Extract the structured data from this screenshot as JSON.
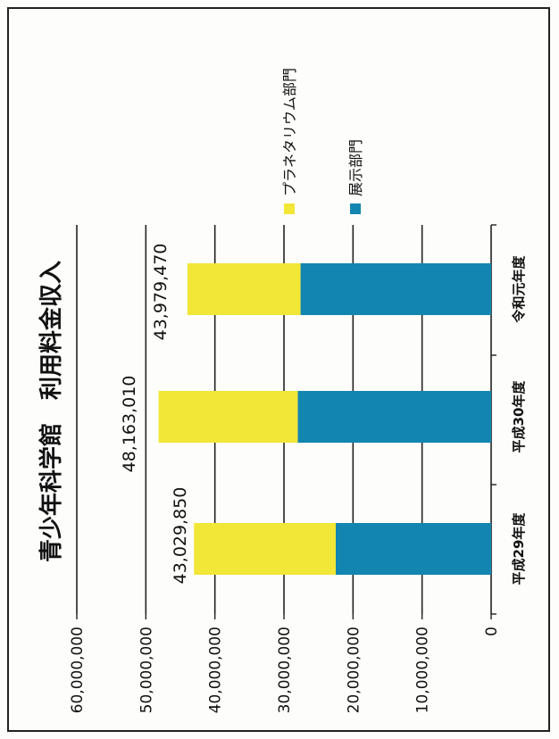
{
  "chart_data": {
    "type": "bar",
    "stacked": true,
    "orientation": "rotated-90-ccw",
    "title": "青少年科学館　利用料金収入",
    "categories": [
      "平成29年度",
      "平成30年度",
      "令和元年度"
    ],
    "series": [
      {
        "name": "展示部門",
        "color": "#1286b0",
        "values": [
          22500000,
          28000000,
          27600000
        ]
      },
      {
        "name": "プラネタリウム部門",
        "color": "#f2e637",
        "values": [
          20529850,
          20163010,
          16379470
        ]
      }
    ],
    "totals": [
      "43,029,850",
      "48,163,010",
      "43,979,470"
    ],
    "total_values": [
      43029850,
      48163010,
      43979470
    ],
    "y_ticks": [
      "0",
      "10,000,000",
      "20,000,000",
      "30,000,000",
      "40,000,000",
      "50,000,000",
      "60,000,000"
    ],
    "ylim": [
      0,
      60000000
    ],
    "grid": true,
    "legend_position": "right"
  }
}
